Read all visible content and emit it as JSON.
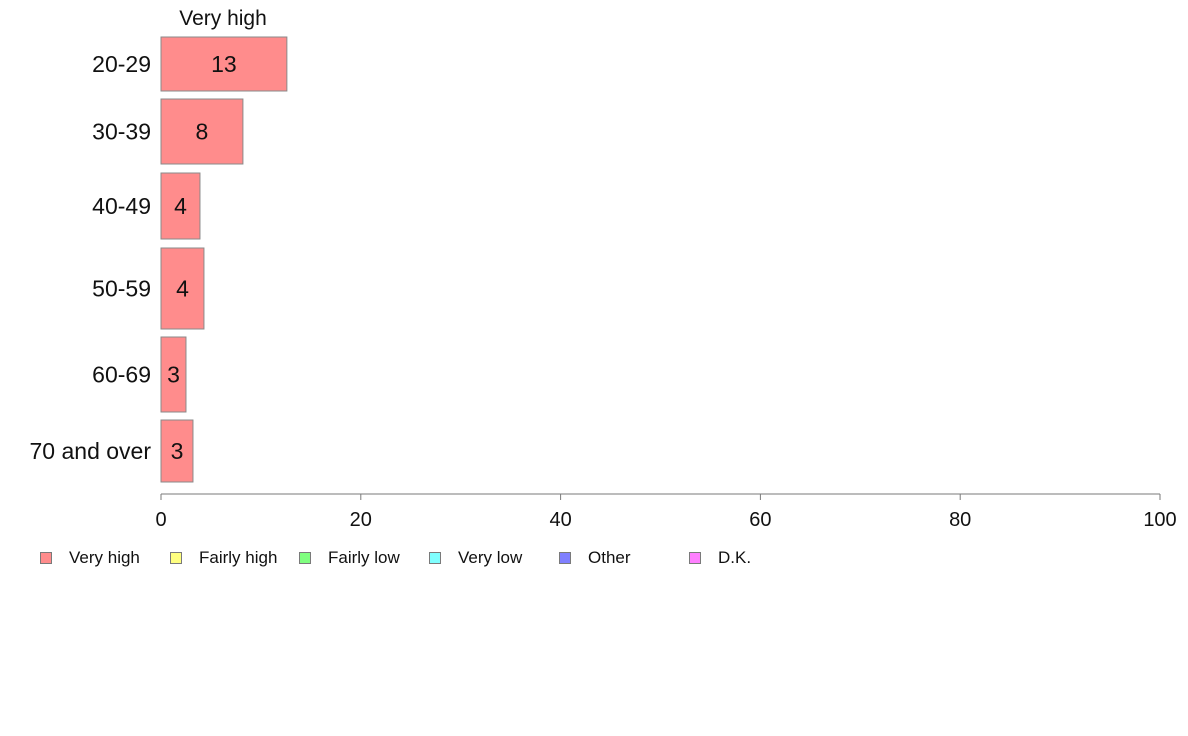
{
  "chart_data": {
    "type": "bar",
    "orientation": "horizontal",
    "stacked": true,
    "categories": [
      "20-29",
      "30-39",
      "40-49",
      "50-59",
      "60-69",
      "70 and over"
    ],
    "series": [
      {
        "name": "Very high",
        "values": [
          13,
          8,
          4,
          4,
          3,
          3
        ],
        "color": "#ff8c8c"
      },
      {
        "name": "Fairly high",
        "values": [
          null,
          null,
          null,
          null,
          null,
          null
        ],
        "color": "#ffff80"
      },
      {
        "name": "Fairly low",
        "values": [
          null,
          null,
          null,
          null,
          null,
          null
        ],
        "color": "#80ff80"
      },
      {
        "name": "Very low",
        "values": [
          null,
          null,
          null,
          null,
          null,
          null
        ],
        "color": "#80ffff"
      },
      {
        "name": "Other",
        "values": [
          null,
          null,
          null,
          null,
          null,
          null
        ],
        "color": "#8080ff"
      },
      {
        "name": "D.K.",
        "values": [
          null,
          null,
          null,
          null,
          null,
          null
        ],
        "color": "#ff80ff"
      }
    ],
    "bar_extents": [
      12.6,
      8.2,
      3.9,
      4.3,
      2.5,
      3.2
    ],
    "data_labels": [
      "13",
      "8",
      "4",
      "4",
      "3",
      "3"
    ],
    "segment_header": "Very high",
    "xlim": [
      0,
      100
    ],
    "x_ticks": [
      0,
      20,
      40,
      60,
      80,
      100
    ],
    "x_tick_labels": [
      "0",
      "20",
      "40",
      "60",
      "80",
      "100"
    ],
    "grid": false,
    "legend_position": "bottom-left"
  }
}
